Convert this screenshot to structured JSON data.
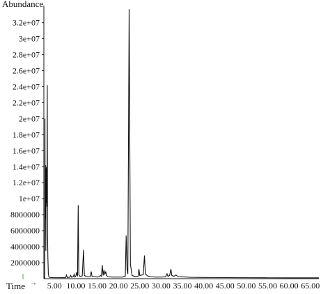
{
  "chart_data": {
    "type": "line",
    "ylabel": "Abundance",
    "xlabel": "Time",
    "x_arrow": "→",
    "xlim": [
      2.5,
      67.0
    ],
    "ylim": [
      0,
      33800000
    ],
    "y_ticks": [
      {
        "value": 2000000,
        "label": "2000000"
      },
      {
        "value": 4000000,
        "label": "4000000"
      },
      {
        "value": 6000000,
        "label": "6000000"
      },
      {
        "value": 8000000,
        "label": "8000000"
      },
      {
        "value": 10000000,
        "label": "1e+07"
      },
      {
        "value": 12000000,
        "label": "1.2e+07"
      },
      {
        "value": 14000000,
        "label": "1.4e+07"
      },
      {
        "value": 16000000,
        "label": "1.6e+07"
      },
      {
        "value": 18000000,
        "label": "1.8e+07"
      },
      {
        "value": 20000000,
        "label": "2e+07"
      },
      {
        "value": 22000000,
        "label": "2.2e+07"
      },
      {
        "value": 24000000,
        "label": "2.4e+07"
      },
      {
        "value": 26000000,
        "label": "2.6e+07"
      },
      {
        "value": 28000000,
        "label": "2.8e+07"
      },
      {
        "value": 30000000,
        "label": "3e+07"
      },
      {
        "value": 32000000,
        "label": "3.2e+07"
      }
    ],
    "x_ticks": [
      {
        "value": 5,
        "label": "5.00"
      },
      {
        "value": 10,
        "label": "10.00"
      },
      {
        "value": 15,
        "label": "15.00"
      },
      {
        "value": 20,
        "label": "20.00"
      },
      {
        "value": 25,
        "label": "25.00"
      },
      {
        "value": 30,
        "label": "30.00"
      },
      {
        "value": 35,
        "label": "35.00"
      },
      {
        "value": 40,
        "label": "40.00"
      },
      {
        "value": 45,
        "label": "45.00"
      },
      {
        "value": 50,
        "label": "50.00"
      },
      {
        "value": 55,
        "label": "55.00"
      },
      {
        "value": 60,
        "label": "60.00"
      },
      {
        "value": 65,
        "label": "65.00"
      }
    ],
    "series": [
      {
        "points": [
          [
            2.5,
            100000
          ],
          [
            2.72,
            100000
          ],
          [
            2.76,
            20000000
          ],
          [
            2.8,
            7500000
          ],
          [
            2.87,
            14200000
          ],
          [
            2.92,
            9200000
          ],
          [
            2.97,
            3500000
          ],
          [
            3.02,
            13800000
          ],
          [
            3.07,
            9500000
          ],
          [
            3.12,
            14000000
          ],
          [
            3.17,
            12500000
          ],
          [
            3.22,
            9000000
          ],
          [
            3.3,
            24200000
          ],
          [
            3.36,
            5500000
          ],
          [
            3.45,
            2500000
          ],
          [
            3.55,
            600000
          ],
          [
            3.7,
            200000
          ],
          [
            4.0,
            150000
          ],
          [
            5.0,
            120000
          ],
          [
            6.0,
            120000
          ],
          [
            7.0,
            130000
          ],
          [
            7.6,
            120000
          ],
          [
            7.8,
            450000
          ],
          [
            8.0,
            150000
          ],
          [
            8.6,
            180000
          ],
          [
            8.8,
            400000
          ],
          [
            9.0,
            180000
          ],
          [
            9.4,
            250000
          ],
          [
            9.6,
            550000
          ],
          [
            9.8,
            200000
          ],
          [
            10.0,
            350000
          ],
          [
            10.2,
            800000
          ],
          [
            10.4,
            300000
          ],
          [
            10.55,
            9200000
          ],
          [
            10.7,
            500000
          ],
          [
            11.0,
            250000
          ],
          [
            11.5,
            350000
          ],
          [
            11.8,
            3600000
          ],
          [
            12.0,
            400000
          ],
          [
            12.5,
            250000
          ],
          [
            13.0,
            250000
          ],
          [
            13.4,
            250000
          ],
          [
            13.6,
            900000
          ],
          [
            13.8,
            300000
          ],
          [
            14.5,
            250000
          ],
          [
            15.0,
            200000
          ],
          [
            15.5,
            250000
          ],
          [
            15.8,
            400000
          ],
          [
            16.0,
            300000
          ],
          [
            16.2,
            1700000
          ],
          [
            16.4,
            400000
          ],
          [
            16.6,
            1100000
          ],
          [
            16.8,
            500000
          ],
          [
            17.0,
            900000
          ],
          [
            17.2,
            400000
          ],
          [
            17.5,
            250000
          ],
          [
            18.5,
            200000
          ],
          [
            20.0,
            200000
          ],
          [
            21.0,
            200000
          ],
          [
            21.6,
            300000
          ],
          [
            21.8,
            5400000
          ],
          [
            22.0,
            1200000
          ],
          [
            22.2,
            600000
          ],
          [
            22.5,
            33700000
          ],
          [
            22.8,
            1800000
          ],
          [
            23.2,
            400000
          ],
          [
            24.0,
            250000
          ],
          [
            24.6,
            300000
          ],
          [
            24.8,
            1200000
          ],
          [
            25.0,
            400000
          ],
          [
            25.8,
            500000
          ],
          [
            26.1,
            2900000
          ],
          [
            26.3,
            600000
          ],
          [
            26.8,
            350000
          ],
          [
            27.5,
            250000
          ],
          [
            28.5,
            200000
          ],
          [
            30.0,
            200000
          ],
          [
            31.0,
            220000
          ],
          [
            31.4,
            600000
          ],
          [
            31.6,
            300000
          ],
          [
            32.0,
            400000
          ],
          [
            32.3,
            1200000
          ],
          [
            32.5,
            400000
          ],
          [
            33.0,
            300000
          ],
          [
            33.5,
            450000
          ],
          [
            34.0,
            250000
          ],
          [
            35.0,
            220000
          ],
          [
            37.0,
            170000
          ],
          [
            40.0,
            150000
          ],
          [
            45.0,
            130000
          ],
          [
            50.0,
            120000
          ],
          [
            55.0,
            110000
          ],
          [
            60.0,
            100000
          ],
          [
            65.0,
            100000
          ],
          [
            67.0,
            100000
          ]
        ]
      }
    ]
  }
}
